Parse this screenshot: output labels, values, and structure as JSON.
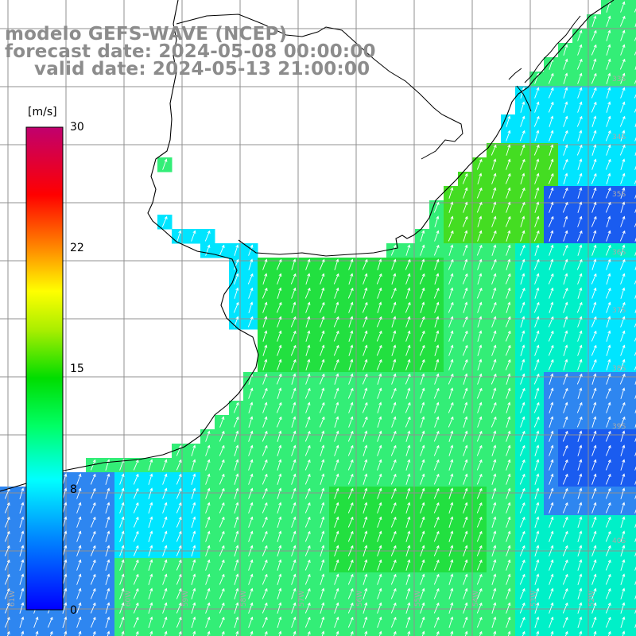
{
  "header": {
    "line1": "modelo GEFS-WAVE (NCEP)",
    "line2": "forecast date: 2024-05-08 00:00:00",
    "line3": "valid date: 2024-05-13 21:00:00"
  },
  "colorbar": {
    "unit": "[m/s]",
    "ticks": [
      {
        "value": 30,
        "label": "30"
      },
      {
        "value": 22,
        "label": "22"
      },
      {
        "value": 15,
        "label": "15"
      },
      {
        "value": 8,
        "label": "8"
      },
      {
        "value": 0,
        "label": "0"
      }
    ],
    "min": 0,
    "max": 30,
    "colors": [
      "#0000ff",
      "#00aaff",
      "#00ffff",
      "#00ff00",
      "#ffff00",
      "#ff8800",
      "#ff0000",
      "#c0006e"
    ]
  },
  "grid": {
    "lat_labels": [
      "33S",
      "34S",
      "35S",
      "36S",
      "37S",
      "38S",
      "39S",
      "40S"
    ],
    "lon_labels": [
      "61W",
      "60W",
      "59W",
      "58W",
      "57W",
      "56W",
      "55W",
      "54W",
      "53W",
      "52W",
      "51W"
    ]
  },
  "field": {
    "variable": "wind speed",
    "ocean_colors": {
      "blue": "#2e86f0",
      "deep_blue": "#1a5cf0",
      "cyan": "#00e5ff",
      "aqua": "#00f0c8",
      "green_light": "#33ee77",
      "green": "#22e040",
      "green_strong": "#44dd22"
    },
    "arrow_color": "#ffffff",
    "coast_color": "#000000"
  }
}
